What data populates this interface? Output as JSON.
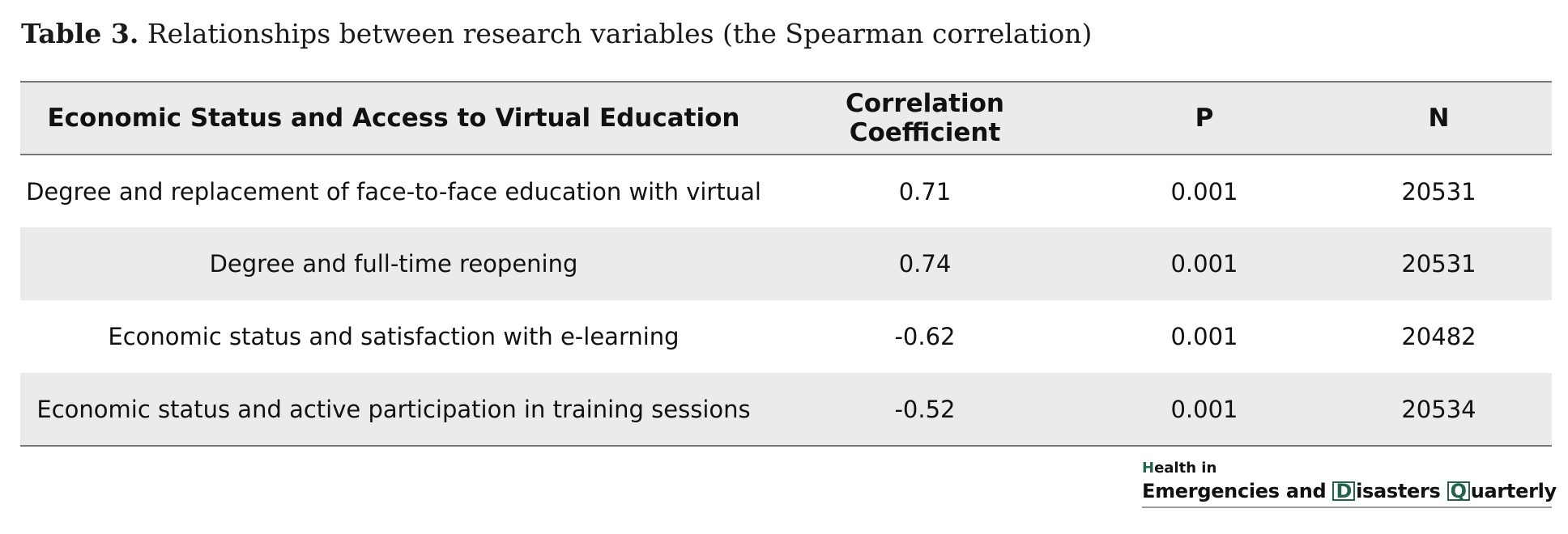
{
  "caption": {
    "label": "Table 3.",
    "text": "Relationships between research variables (the Spearman correlation)"
  },
  "table": {
    "headers": [
      "Economic Status and Access to Virtual Education",
      "Correlation Coefficient",
      "P",
      "N"
    ],
    "rows": [
      [
        "Degree and replacement of face-to-face education with virtual",
        "0.71",
        "0.001",
        "20531"
      ],
      [
        "Degree and full-time reopening",
        "0.74",
        "0.001",
        "20531"
      ],
      [
        "Economic status and satisfaction with e-learning",
        "-0.62",
        "0.001",
        "20482"
      ],
      [
        "Economic status and active participation in training sessions",
        "-0.52",
        "0.001",
        "20534"
      ]
    ]
  },
  "logo": {
    "line1_initial": "H",
    "line1_rest": "ealth in",
    "word1": "Emergencies and ",
    "initial2": "D",
    "word2": "isasters ",
    "initial3": "Q",
    "word3": "uarterly",
    "accent_color": "#24634a"
  }
}
